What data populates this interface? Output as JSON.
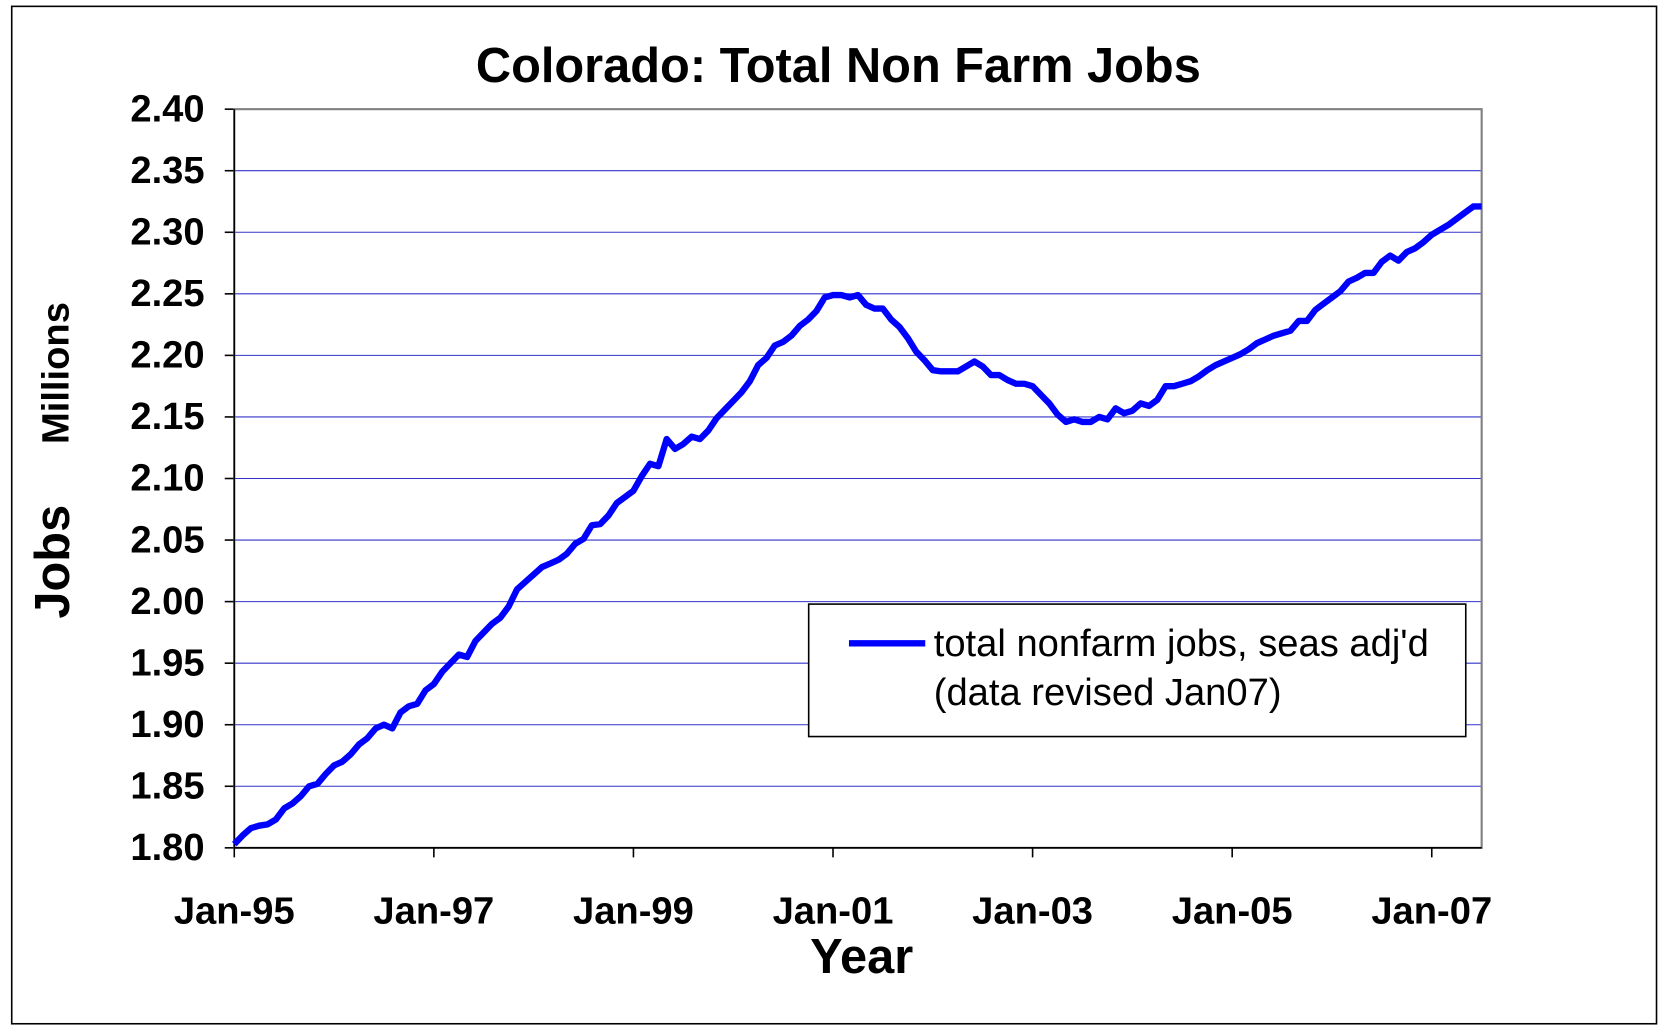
{
  "chart_data": {
    "type": "line",
    "title": "Colorado: Total Non Farm Jobs",
    "xlabel": "Year",
    "ylabel": "Jobs",
    "ylabel_units": "Millions",
    "xlim": [
      "1995-01",
      "2007-07"
    ],
    "xticks": [
      {
        "value": "1995-01",
        "label": "Jan-95"
      },
      {
        "value": "1997-01",
        "label": "Jan-97"
      },
      {
        "value": "1999-01",
        "label": "Jan-99"
      },
      {
        "value": "2001-01",
        "label": "Jan-01"
      },
      {
        "value": "2003-01",
        "label": "Jan-03"
      },
      {
        "value": "2005-01",
        "label": "Jan-05"
      },
      {
        "value": "2007-01",
        "label": "Jan-07"
      }
    ],
    "ylim": [
      1.8,
      2.4
    ],
    "yticks": [
      {
        "value": 1.8,
        "label": "1.80"
      },
      1.85,
      {
        "value": 1.9,
        "label": "1.90"
      },
      1.95,
      {
        "value": 2.0,
        "label": "2.00"
      },
      2.05,
      {
        "value": 2.1,
        "label": "2.10"
      },
      2.15,
      {
        "value": 2.2,
        "label": "2.20"
      },
      2.25,
      {
        "value": 2.3,
        "label": "2.30"
      },
      2.35,
      {
        "value": 2.4,
        "label": "2.40"
      }
    ],
    "grid": true,
    "legend": "lower right",
    "x": [
      "1995-01",
      "1995-02",
      "1995-03",
      "1995-04",
      "1995-05",
      "1995-06",
      "1995-07",
      "1995-08",
      "1995-09",
      "1995-10",
      "1995-11",
      "1995-12",
      "1996-01",
      "1996-02",
      "1996-03",
      "1996-04",
      "1996-05",
      "1996-06",
      "1996-07",
      "1996-08",
      "1996-09",
      "1996-10",
      "1996-11",
      "1996-12",
      "1997-01",
      "1997-02",
      "1997-03",
      "1997-04",
      "1997-05",
      "1997-06",
      "1997-07",
      "1997-08",
      "1997-09",
      "1997-10",
      "1997-11",
      "1997-12",
      "1998-01",
      "1998-02",
      "1998-03",
      "1998-04",
      "1998-05",
      "1998-06",
      "1998-07",
      "1998-08",
      "1998-09",
      "1998-10",
      "1998-11",
      "1998-12",
      "1999-01",
      "1999-02",
      "1999-03",
      "1999-04",
      "1999-05",
      "1999-06",
      "1999-07",
      "1999-08",
      "1999-09",
      "1999-10",
      "1999-11",
      "1999-12",
      "2000-01",
      "2000-02",
      "2000-03",
      "2000-04",
      "2000-05",
      "2000-06",
      "2000-07",
      "2000-08",
      "2000-09",
      "2000-10",
      "2000-11",
      "2000-12",
      "2001-01",
      "2001-02",
      "2001-03",
      "2001-04",
      "2001-05",
      "2001-06",
      "2001-07",
      "2001-08",
      "2001-09",
      "2001-10",
      "2001-11",
      "2001-12",
      "2002-01",
      "2002-02",
      "2002-03",
      "2002-04",
      "2002-05",
      "2002-06",
      "2002-07",
      "2002-08",
      "2002-09",
      "2002-10",
      "2002-11",
      "2002-12",
      "2003-01",
      "2003-02",
      "2003-03",
      "2003-04",
      "2003-05",
      "2003-06",
      "2003-07",
      "2003-08",
      "2003-09",
      "2003-10",
      "2003-11",
      "2003-12",
      "2004-01",
      "2004-02",
      "2004-03",
      "2004-04",
      "2004-05",
      "2004-06",
      "2004-07",
      "2004-08",
      "2004-09",
      "2004-10",
      "2004-11",
      "2004-12",
      "2005-01",
      "2005-02",
      "2005-03",
      "2005-04",
      "2005-05",
      "2005-06",
      "2005-07",
      "2005-08",
      "2005-09",
      "2005-10",
      "2005-11",
      "2005-12",
      "2006-01",
      "2006-02",
      "2006-03",
      "2006-04",
      "2006-05",
      "2006-06",
      "2006-07",
      "2006-08",
      "2006-09",
      "2006-10",
      "2006-11",
      "2006-12",
      "2007-01",
      "2007-02",
      "2007-03",
      "2007-04",
      "2007-05",
      "2007-06",
      "2007-07"
    ],
    "series": [
      {
        "name": "total nonfarm jobs, seas adj'd (data revised Jan07)",
        "color": "#0000ff",
        "values": [
          1.803,
          1.81,
          1.816,
          1.818,
          1.819,
          1.823,
          1.832,
          1.836,
          1.842,
          1.85,
          1.852,
          1.86,
          1.867,
          1.87,
          1.876,
          1.884,
          1.889,
          1.897,
          1.9,
          1.897,
          1.91,
          1.915,
          1.917,
          1.928,
          1.933,
          1.943,
          1.95,
          1.957,
          1.955,
          1.968,
          1.975,
          1.982,
          1.987,
          1.996,
          2.01,
          2.016,
          2.022,
          2.028,
          2.031,
          2.034,
          2.039,
          2.047,
          2.051,
          2.062,
          2.063,
          2.07,
          2.08,
          2.085,
          2.09,
          2.102,
          2.112,
          2.11,
          2.132,
          2.124,
          2.128,
          2.134,
          2.132,
          2.139,
          2.149,
          2.156,
          2.163,
          2.17,
          2.179,
          2.192,
          2.198,
          2.208,
          2.211,
          2.216,
          2.224,
          2.229,
          2.236,
          2.247,
          2.249,
          2.249,
          2.247,
          2.249,
          2.241,
          2.238,
          2.238,
          2.229,
          2.223,
          2.214,
          2.203,
          2.196,
          2.188,
          2.187,
          2.187,
          2.187,
          2.191,
          2.195,
          2.191,
          2.184,
          2.184,
          2.18,
          2.177,
          2.177,
          2.175,
          2.168,
          2.161,
          2.152,
          2.146,
          2.148,
          2.146,
          2.146,
          2.15,
          2.148,
          2.157,
          2.153,
          2.155,
          2.161,
          2.159,
          2.164,
          2.175,
          2.175,
          2.177,
          2.179,
          2.183,
          2.188,
          2.192,
          2.195,
          2.198,
          2.201,
          2.205,
          2.21,
          2.213,
          2.216,
          2.218,
          2.22,
          2.228,
          2.228,
          2.237,
          2.242,
          2.247,
          2.252,
          2.26,
          2.263,
          2.267,
          2.267,
          2.276,
          2.281,
          2.277,
          2.284,
          2.287,
          2.292,
          2.298,
          2.302,
          2.306,
          2.311,
          2.316,
          2.321,
          2.321
        ]
      }
    ]
  }
}
